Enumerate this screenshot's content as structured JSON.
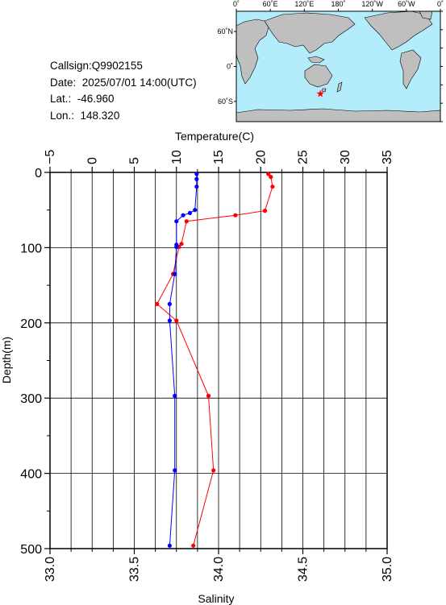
{
  "station": {
    "callsign": "Callsign:Q9902155",
    "date": "Date:  2025/07/01 14:00(UTC)",
    "lat": "Lat.:  -46.960",
    "lon": "Lon.:  148.320"
  },
  "map": {
    "top_ticks": [
      "0˚",
      "60˚E",
      "120˚E",
      "180˚",
      "120˚W",
      "60˚W",
      "0˚"
    ],
    "left_ticks": [
      "60˚N",
      "0˚",
      "60˚S"
    ],
    "marker_lon": 148.32,
    "marker_lat": -46.96,
    "marker_color": "#ff0000",
    "ocean_color": "#b3ecfb",
    "land_color": "#bfbfbf"
  },
  "chart_data": {
    "type": "line",
    "ylabel": "Depth(m)",
    "y_ticks": [
      "0",
      "100",
      "200",
      "300",
      "400",
      "500"
    ],
    "ylim": [
      0,
      500
    ],
    "y_reversed": true,
    "grid": true,
    "x_top": {
      "label": "Temperature(C)",
      "ticks": [
        "−5",
        "0",
        "5",
        "10",
        "15",
        "20",
        "25",
        "30",
        "35"
      ],
      "lim": [
        -5,
        35
      ]
    },
    "x_bottom": {
      "label": "Salinity",
      "ticks": [
        "33.0",
        "33.5",
        "34.0",
        "34.5",
        "35.0"
      ],
      "lim": [
        33.0,
        35.0
      ]
    },
    "series": [
      {
        "axis": "top",
        "color": "#ff0000",
        "depth": [
          2,
          6,
          19,
          51,
          57,
          65,
          95,
          99,
          135,
          175,
          197,
          297,
          396,
          496
        ],
        "values": [
          20.9,
          21.2,
          21.4,
          20.5,
          17.0,
          11.2,
          10.6,
          10.3,
          9.6,
          7.7,
          10.0,
          13.8,
          14.4,
          12.0
        ]
      },
      {
        "axis": "bottom",
        "color": "#0000ff",
        "depth": [
          2,
          9,
          19,
          50,
          54,
          57,
          65,
          96,
          99,
          135,
          175,
          197,
          297,
          396,
          496
        ],
        "values": [
          33.87,
          33.87,
          33.87,
          33.86,
          33.83,
          33.79,
          33.75,
          33.75,
          33.75,
          33.74,
          33.71,
          33.71,
          33.74,
          33.74,
          33.71
        ]
      }
    ]
  }
}
